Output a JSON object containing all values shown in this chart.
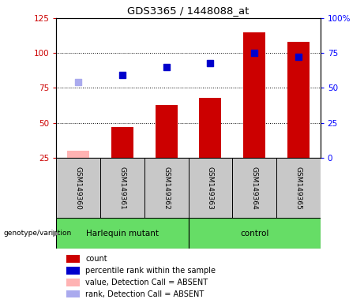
{
  "title": "GDS3365 / 1448088_at",
  "samples": [
    "GSM149360",
    "GSM149361",
    "GSM149362",
    "GSM149363",
    "GSM149364",
    "GSM149365"
  ],
  "count_values": [
    null,
    47,
    63,
    68,
    115,
    108
  ],
  "count_absent": [
    30,
    null,
    null,
    null,
    null,
    null
  ],
  "rank_values": [
    null,
    59,
    65,
    68,
    75,
    72
  ],
  "rank_absent": [
    54,
    null,
    null,
    null,
    null,
    null
  ],
  "ylim_left": [
    25,
    125
  ],
  "ylim_right": [
    0,
    100
  ],
  "yticks_left": [
    25,
    50,
    75,
    100,
    125
  ],
  "ytick_labels_right": [
    "0",
    "25",
    "50",
    "75",
    "100%"
  ],
  "bar_color": "#cc0000",
  "bar_absent_color": "#ffb3b3",
  "rank_color": "#0000cc",
  "rank_absent_color": "#aaaaee",
  "bar_width": 0.5,
  "rank_marker_size": 40,
  "harlequin_color": "#66dd66",
  "control_color": "#66dd66",
  "sample_box_color": "#c8c8c8",
  "legend_items": [
    {
      "color": "#cc0000",
      "label": "count"
    },
    {
      "color": "#0000cc",
      "label": "percentile rank within the sample"
    },
    {
      "color": "#ffb3b3",
      "label": "value, Detection Call = ABSENT"
    },
    {
      "color": "#aaaaee",
      "label": "rank, Detection Call = ABSENT"
    }
  ]
}
